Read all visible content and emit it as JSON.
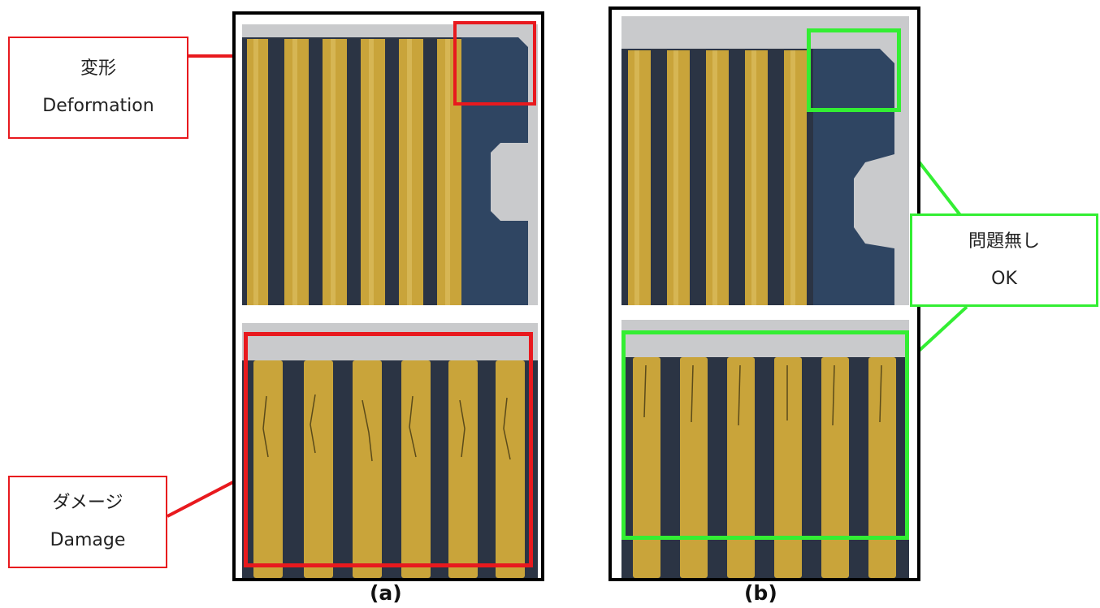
{
  "panels": {
    "a": {
      "caption": "(a)"
    },
    "b": {
      "caption": "(b)"
    }
  },
  "callouts": {
    "deformation": {
      "line1": "変形",
      "line2": "Deformation",
      "color": "#e8191e"
    },
    "damage": {
      "line1": "ダメージ",
      "line2": "Damage",
      "color": "#e8191e"
    },
    "ok": {
      "line1": "問題無し",
      "line2": "OK",
      "color": "#33ee33"
    }
  },
  "colors": {
    "gold": "#c9a43a",
    "gold_light": "#e2c56a",
    "substrate": "#2b3444",
    "tab_blue": "#2f4562",
    "background_grey": "#c9cacc",
    "frame": "#000000"
  }
}
